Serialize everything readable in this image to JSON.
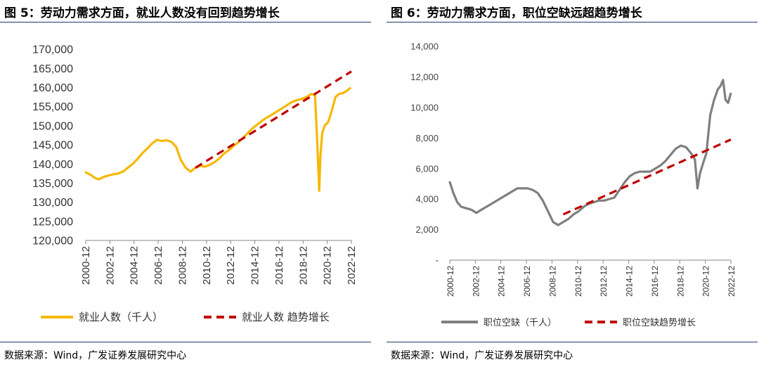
{
  "chart_data": [
    {
      "type": "line",
      "title": "图 5：劳动力需求方面，就业人数没有回到趋势增长",
      "source": "数据来源：Wind，广发证券发展研究中心",
      "ylim": [
        120000,
        170000
      ],
      "yticks": [
        "170,000",
        "165,000",
        "160,000",
        "155,000",
        "150,000",
        "145,000",
        "140,000",
        "135,000",
        "130,000",
        "125,000",
        "120,000"
      ],
      "ytick_values": [
        170000,
        165000,
        160000,
        155000,
        150000,
        145000,
        140000,
        135000,
        130000,
        125000,
        120000
      ],
      "xlim": [
        2000.917,
        2022.917
      ],
      "xticks": [
        "2000-12",
        "2002-12",
        "2004-12",
        "2006-12",
        "2008-12",
        "2010-12",
        "2012-12",
        "2014-12",
        "2016-12",
        "2018-12",
        "2020-12",
        "2022-12"
      ],
      "grid": false,
      "legend_position": "bottom",
      "series": [
        {
          "name": "就业人数（千人）",
          "color": "#f5b800",
          "style": "solid",
          "x": [
            2000.92,
            2001.3,
            2001.7,
            2002.0,
            2002.4,
            2002.8,
            2003.2,
            2003.6,
            2004.0,
            2004.4,
            2004.8,
            2005.2,
            2005.6,
            2006.0,
            2006.4,
            2006.8,
            2007.2,
            2007.6,
            2008.0,
            2008.4,
            2008.8,
            2009.2,
            2009.6,
            2010.0,
            2010.4,
            2010.8,
            2011.2,
            2011.6,
            2012.0,
            2012.4,
            2012.8,
            2013.2,
            2013.6,
            2014.0,
            2014.4,
            2014.8,
            2015.2,
            2015.6,
            2016.0,
            2016.4,
            2016.8,
            2017.2,
            2017.6,
            2018.0,
            2018.4,
            2018.8,
            2019.2,
            2019.6,
            2019.9,
            2020.1,
            2020.25,
            2020.35,
            2020.5,
            2020.7,
            2021.0,
            2021.3,
            2021.6,
            2021.9,
            2022.2,
            2022.5,
            2022.8
          ],
          "values": [
            137800,
            137200,
            136300,
            136000,
            136600,
            137000,
            137300,
            137500,
            138000,
            139000,
            140000,
            141300,
            142800,
            144000,
            145300,
            146300,
            146000,
            146200,
            145800,
            144500,
            141000,
            139000,
            138000,
            139000,
            139500,
            139300,
            139800,
            140500,
            141500,
            142800,
            143700,
            144800,
            145800,
            147000,
            148300,
            149500,
            150500,
            151500,
            152300,
            153000,
            153800,
            154600,
            155400,
            156200,
            156700,
            157000,
            157500,
            158300,
            158000,
            145000,
            133000,
            142000,
            148000,
            150000,
            151000,
            154000,
            157500,
            158300,
            158500,
            159000,
            159800
          ]
        },
        {
          "name": "就业人数 趋势增长",
          "color": "#c00000",
          "style": "dashed",
          "x": [
            2010.0,
            2022.917
          ],
          "values": [
            139000,
            164200
          ]
        }
      ]
    },
    {
      "type": "line",
      "title": "图 6：劳动力需求方面，职位空缺远超趋势增长",
      "source": "数据来源：Wind，广发证券发展研究中心",
      "ylim": [
        0,
        14000
      ],
      "yticks": [
        "14,000",
        "12,000",
        "10,000",
        "8,000",
        "6,000",
        "4,000",
        "2,000",
        "-"
      ],
      "ytick_values": [
        14000,
        12000,
        10000,
        8000,
        6000,
        4000,
        2000,
        0
      ],
      "xlim": [
        2000.917,
        2022.917
      ],
      "xticks": [
        "2000-12",
        "2002-12",
        "2004-12",
        "2006-12",
        "2008-12",
        "2010-12",
        "2012-12",
        "2014-12",
        "2016-12",
        "2018-12",
        "2020-12",
        "2022-12"
      ],
      "grid": false,
      "legend_position": "bottom",
      "series": [
        {
          "name": "职位空缺（千人）",
          "color": "#7f7f7f",
          "style": "solid",
          "x": [
            2000.92,
            2001.2,
            2001.5,
            2001.8,
            2002.2,
            2002.6,
            2003.0,
            2003.4,
            2003.8,
            2004.2,
            2004.6,
            2005.0,
            2005.4,
            2005.8,
            2006.2,
            2006.6,
            2007.0,
            2007.4,
            2007.8,
            2008.2,
            2008.6,
            2009.0,
            2009.4,
            2009.8,
            2010.2,
            2010.6,
            2011.0,
            2011.4,
            2011.8,
            2012.2,
            2012.6,
            2013.0,
            2013.4,
            2013.8,
            2014.2,
            2014.6,
            2015.0,
            2015.4,
            2015.8,
            2016.2,
            2016.6,
            2017.0,
            2017.4,
            2017.8,
            2018.2,
            2018.6,
            2019.0,
            2019.4,
            2019.8,
            2020.1,
            2020.3,
            2020.5,
            2020.8,
            2021.0,
            2021.3,
            2021.6,
            2021.9,
            2022.1,
            2022.3,
            2022.5,
            2022.7,
            2022.9
          ],
          "values": [
            5100,
            4400,
            3800,
            3500,
            3400,
            3300,
            3100,
            3300,
            3500,
            3700,
            3900,
            4100,
            4300,
            4500,
            4700,
            4700,
            4700,
            4600,
            4400,
            3900,
            3200,
            2500,
            2300,
            2500,
            2700,
            3000,
            3200,
            3500,
            3700,
            3800,
            3900,
            3900,
            4000,
            4100,
            4600,
            5100,
            5500,
            5700,
            5800,
            5800,
            5800,
            6000,
            6200,
            6500,
            6900,
            7300,
            7500,
            7400,
            7000,
            6600,
            4700,
            5700,
            6500,
            7000,
            9500,
            10500,
            11200,
            11400,
            11800,
            10500,
            10300,
            10900
          ]
        },
        {
          "name": "职位空缺趋势增长",
          "color": "#c00000",
          "style": "dashed",
          "x": [
            2009.8,
            2022.917
          ],
          "values": [
            3000,
            7900
          ]
        }
      ]
    }
  ]
}
